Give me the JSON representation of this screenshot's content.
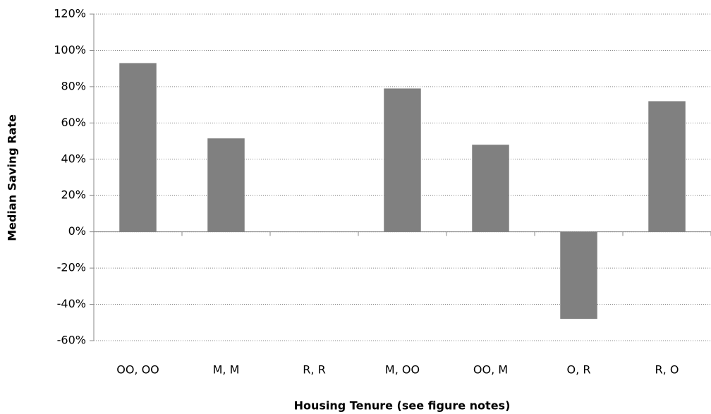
{
  "chart_data": {
    "type": "bar",
    "x_label": "Housing Tenure (see figure notes)",
    "y_label": "Median Saving Rate",
    "categories": [
      "OO, OO",
      "M, M",
      "R, R",
      "M, OO",
      "OO, M",
      "O, R",
      "R, O"
    ],
    "values": [
      93,
      51.5,
      0,
      79,
      48,
      -48,
      72
    ],
    "color": "#808080",
    "ylim": [
      -60,
      120
    ],
    "yticks": [
      {
        "value": -60,
        "label": "-60%"
      },
      {
        "value": -40,
        "label": "-40%"
      },
      {
        "value": -20,
        "label": "-20%"
      },
      {
        "value": 0,
        "label": "0%"
      },
      {
        "value": 20,
        "label": "20%"
      },
      {
        "value": 40,
        "label": "40%"
      },
      {
        "value": 60,
        "label": "60%"
      },
      {
        "value": 80,
        "label": "80%"
      },
      {
        "value": 100,
        "label": "100%"
      },
      {
        "value": 120,
        "label": "120%"
      }
    ],
    "grid": true
  }
}
